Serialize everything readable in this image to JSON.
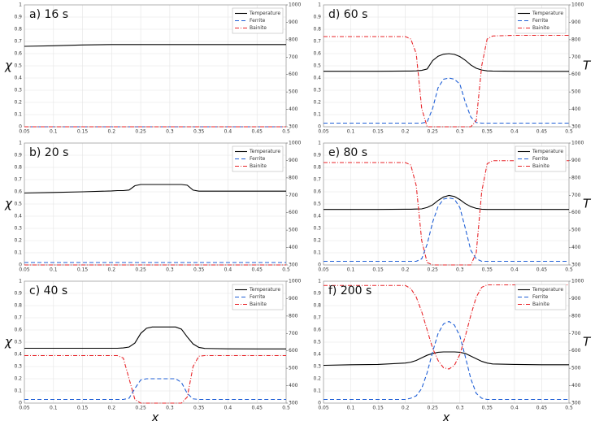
{
  "chart_data": [
    {
      "type": "line",
      "title": "a) 16 s",
      "ylabel": "χ",
      "x": [
        0.05,
        0.1,
        0.15,
        0.2,
        0.21,
        0.22,
        0.23,
        0.24,
        0.25,
        0.26,
        0.27,
        0.28,
        0.29,
        0.3,
        0.31,
        0.32,
        0.33,
        0.34,
        0.35,
        0.36,
        0.4,
        0.45,
        0.5
      ],
      "series": [
        {
          "name": "Temperature",
          "color": "#000000",
          "dash": "solid",
          "axis": "y2",
          "values": [
            762,
            765,
            770,
            772,
            772,
            772,
            772,
            772,
            772,
            772,
            772,
            772,
            772,
            772,
            772,
            772,
            772,
            772,
            772,
            772,
            772,
            772,
            772
          ]
        },
        {
          "name": "Ferrite",
          "color": "#1f5fd6",
          "dash": "dashed",
          "values": [
            0,
            0,
            0,
            0,
            0,
            0,
            0,
            0,
            0,
            0,
            0,
            0,
            0,
            0,
            0,
            0,
            0,
            0,
            0,
            0,
            0,
            0,
            0
          ]
        },
        {
          "name": "Bainite",
          "color": "#e8262a",
          "dash": "dashdot",
          "values": [
            0,
            0,
            0,
            0,
            0,
            0,
            0,
            0,
            0,
            0,
            0,
            0,
            0,
            0,
            0,
            0,
            0,
            0,
            0,
            0,
            0,
            0,
            0
          ]
        }
      ],
      "xlim": [
        0.05,
        0.5
      ],
      "xticks": [
        0.05,
        0.1,
        0.15,
        0.2,
        0.25,
        0.3,
        0.35,
        0.4,
        0.45,
        0.5
      ],
      "ylim": [
        0,
        1
      ],
      "yticks": [
        0,
        0.1,
        0.2,
        0.3,
        0.4,
        0.5,
        0.6,
        0.7,
        0.8,
        0.9,
        1
      ],
      "y2lim": [
        300,
        1000
      ],
      "y2ticks": [
        300,
        400,
        500,
        600,
        700,
        800,
        900,
        1000
      ],
      "grid": true,
      "legend": "upper-right"
    },
    {
      "type": "line",
      "title": "d) 60 s",
      "y2label": "T",
      "x": [
        0.05,
        0.1,
        0.15,
        0.2,
        0.21,
        0.22,
        0.23,
        0.24,
        0.25,
        0.26,
        0.27,
        0.28,
        0.29,
        0.3,
        0.31,
        0.32,
        0.33,
        0.34,
        0.35,
        0.36,
        0.4,
        0.45,
        0.5
      ],
      "series": [
        {
          "name": "Temperature",
          "color": "#000000",
          "dash": "solid",
          "axis": "y2",
          "values": [
            619,
            619,
            619,
            620,
            620,
            621,
            624,
            632,
            680,
            705,
            717,
            720,
            716,
            703,
            682,
            655,
            636,
            626,
            621,
            620,
            619,
            618,
            618
          ]
        },
        {
          "name": "Ferrite",
          "color": "#1f5fd6",
          "dash": "dashed",
          "values": [
            0.03,
            0.03,
            0.03,
            0.03,
            0.03,
            0.03,
            0.03,
            0.04,
            0.15,
            0.32,
            0.39,
            0.4,
            0.39,
            0.35,
            0.2,
            0.08,
            0.035,
            0.03,
            0.03,
            0.03,
            0.03,
            0.03,
            0.03
          ]
        },
        {
          "name": "Bainite",
          "color": "#e8262a",
          "dash": "dashdot",
          "values": [
            0.74,
            0.74,
            0.74,
            0.74,
            0.72,
            0.6,
            0.15,
            0,
            0,
            0,
            0,
            0,
            0,
            0,
            0,
            0,
            0.05,
            0.5,
            0.72,
            0.745,
            0.75,
            0.75,
            0.75
          ]
        }
      ],
      "xlim": [
        0.05,
        0.5
      ],
      "xticks": [
        0.05,
        0.1,
        0.15,
        0.2,
        0.25,
        0.3,
        0.35,
        0.4,
        0.45,
        0.5
      ],
      "ylim": [
        0,
        1
      ],
      "yticks": [
        0,
        0.1,
        0.2,
        0.3,
        0.4,
        0.5,
        0.6,
        0.7,
        0.8,
        0.9,
        1
      ],
      "y2lim": [
        300,
        1000
      ],
      "y2ticks": [
        300,
        400,
        500,
        600,
        700,
        800,
        900,
        1000
      ],
      "grid": true,
      "legend": "upper-right"
    },
    {
      "type": "line",
      "title": "b) 20 s",
      "ylabel": "χ",
      "x": [
        0.05,
        0.1,
        0.15,
        0.2,
        0.21,
        0.22,
        0.23,
        0.24,
        0.25,
        0.26,
        0.27,
        0.28,
        0.29,
        0.3,
        0.31,
        0.32,
        0.33,
        0.34,
        0.35,
        0.36,
        0.4,
        0.45,
        0.5
      ],
      "series": [
        {
          "name": "Temperature",
          "color": "#000000",
          "dash": "solid",
          "axis": "y2",
          "values": [
            713,
            716,
            720,
            725,
            727,
            727,
            730,
            755,
            762,
            762,
            762,
            762,
            762,
            762,
            762,
            762,
            758,
            730,
            724,
            724,
            724,
            724,
            724
          ]
        },
        {
          "name": "Ferrite",
          "color": "#1f5fd6",
          "dash": "dashed",
          "values": [
            0.02,
            0.02,
            0.02,
            0.02,
            0.02,
            0.02,
            0.02,
            0.02,
            0.02,
            0.02,
            0.02,
            0.02,
            0.02,
            0.02,
            0.02,
            0.02,
            0.02,
            0.02,
            0.02,
            0.02,
            0.02,
            0.02,
            0.02
          ]
        },
        {
          "name": "Bainite",
          "color": "#e8262a",
          "dash": "dashdot",
          "values": [
            0,
            0,
            0,
            0,
            0,
            0,
            0,
            0,
            0,
            0,
            0,
            0,
            0,
            0,
            0,
            0,
            0,
            0,
            0,
            0,
            0,
            0,
            0
          ]
        }
      ],
      "xlim": [
        0.05,
        0.5
      ],
      "xticks": [
        0.05,
        0.1,
        0.15,
        0.2,
        0.25,
        0.3,
        0.35,
        0.4,
        0.45,
        0.5
      ],
      "ylim": [
        0,
        1
      ],
      "yticks": [
        0,
        0.1,
        0.2,
        0.3,
        0.4,
        0.5,
        0.6,
        0.7,
        0.8,
        0.9,
        1
      ],
      "y2lim": [
        300,
        1000
      ],
      "y2ticks": [
        300,
        400,
        500,
        600,
        700,
        800,
        900,
        1000
      ],
      "grid": true,
      "legend": "upper-right"
    },
    {
      "type": "line",
      "title": "e) 80 s",
      "y2label": "T",
      "x": [
        0.05,
        0.1,
        0.15,
        0.2,
        0.21,
        0.22,
        0.23,
        0.24,
        0.25,
        0.26,
        0.27,
        0.28,
        0.29,
        0.3,
        0.31,
        0.32,
        0.33,
        0.34,
        0.35,
        0.36,
        0.4,
        0.45,
        0.5
      ],
      "series": [
        {
          "name": "Temperature",
          "color": "#000000",
          "dash": "solid",
          "axis": "y2",
          "values": [
            619,
            619,
            619,
            620,
            620,
            621,
            622,
            630,
            645,
            670,
            690,
            699,
            693,
            675,
            652,
            635,
            625,
            620,
            619,
            619,
            619,
            619,
            619
          ]
        },
        {
          "name": "Ferrite",
          "color": "#1f5fd6",
          "dash": "dashed",
          "values": [
            0.03,
            0.03,
            0.03,
            0.03,
            0.03,
            0.03,
            0.05,
            0.17,
            0.35,
            0.48,
            0.54,
            0.55,
            0.54,
            0.47,
            0.3,
            0.12,
            0.05,
            0.03,
            0.03,
            0.03,
            0.03,
            0.03,
            0.03
          ]
        },
        {
          "name": "Bainite",
          "color": "#e8262a",
          "dash": "dashdot",
          "values": [
            0.84,
            0.84,
            0.84,
            0.84,
            0.82,
            0.65,
            0.2,
            0.02,
            0,
            0,
            0,
            0,
            0,
            0,
            0,
            0,
            0.1,
            0.6,
            0.83,
            0.855,
            0.855,
            0.855,
            0.855
          ]
        }
      ],
      "xlim": [
        0.05,
        0.5
      ],
      "xticks": [
        0.05,
        0.1,
        0.15,
        0.2,
        0.25,
        0.3,
        0.35,
        0.4,
        0.45,
        0.5
      ],
      "ylim": [
        0,
        1
      ],
      "yticks": [
        0,
        0.1,
        0.2,
        0.3,
        0.4,
        0.5,
        0.6,
        0.7,
        0.8,
        0.9,
        1
      ],
      "y2lim": [
        300,
        1000
      ],
      "y2ticks": [
        300,
        400,
        500,
        600,
        700,
        800,
        900,
        1000
      ],
      "grid": true,
      "legend": "upper-right"
    },
    {
      "type": "line",
      "title": "c) 40 s",
      "ylabel": "χ",
      "xlabel": "x",
      "x": [
        0.05,
        0.1,
        0.15,
        0.2,
        0.21,
        0.22,
        0.23,
        0.24,
        0.25,
        0.26,
        0.27,
        0.28,
        0.29,
        0.3,
        0.31,
        0.32,
        0.33,
        0.34,
        0.35,
        0.36,
        0.4,
        0.45,
        0.5
      ],
      "series": [
        {
          "name": "Temperature",
          "color": "#000000",
          "dash": "solid",
          "axis": "y2",
          "values": [
            615,
            615,
            615,
            615,
            615,
            617,
            622,
            645,
            700,
            730,
            737,
            737,
            737,
            737,
            737,
            725,
            680,
            640,
            620,
            614,
            612,
            611,
            611
          ]
        },
        {
          "name": "Ferrite",
          "color": "#1f5fd6",
          "dash": "dashed",
          "values": [
            0.03,
            0.03,
            0.03,
            0.03,
            0.03,
            0.03,
            0.04,
            0.12,
            0.19,
            0.2,
            0.2,
            0.2,
            0.2,
            0.2,
            0.2,
            0.17,
            0.08,
            0.035,
            0.03,
            0.03,
            0.03,
            0.03,
            0.03
          ]
        },
        {
          "name": "Bainite",
          "color": "#e8262a",
          "dash": "dashdot",
          "values": [
            0.39,
            0.39,
            0.39,
            0.39,
            0.39,
            0.37,
            0.2,
            0.03,
            0,
            0,
            0,
            0,
            0,
            0,
            0,
            0,
            0.05,
            0.3,
            0.385,
            0.39,
            0.39,
            0.39,
            0.39
          ]
        }
      ],
      "xlim": [
        0.05,
        0.5
      ],
      "xticks": [
        0.05,
        0.1,
        0.15,
        0.2,
        0.25,
        0.3,
        0.35,
        0.4,
        0.45,
        0.5
      ],
      "ylim": [
        0,
        1
      ],
      "yticks": [
        0,
        0.1,
        0.2,
        0.3,
        0.4,
        0.5,
        0.6,
        0.7,
        0.8,
        0.9,
        1
      ],
      "y2lim": [
        300,
        1000
      ],
      "y2ticks": [
        300,
        400,
        500,
        600,
        700,
        800,
        900,
        1000
      ],
      "grid": true,
      "legend": "upper-right"
    },
    {
      "type": "line",
      "title": "f) 200 s",
      "y2label": "T",
      "xlabel": "x",
      "x": [
        0.05,
        0.1,
        0.15,
        0.2,
        0.21,
        0.22,
        0.23,
        0.24,
        0.25,
        0.26,
        0.27,
        0.28,
        0.29,
        0.3,
        0.31,
        0.32,
        0.33,
        0.34,
        0.35,
        0.36,
        0.4,
        0.45,
        0.5
      ],
      "series": [
        {
          "name": "Temperature",
          "color": "#000000",
          "dash": "solid",
          "axis": "y2",
          "values": [
            517,
            520,
            522,
            530,
            535,
            545,
            560,
            575,
            585,
            592,
            594,
            594,
            594,
            592,
            585,
            570,
            555,
            540,
            530,
            525,
            522,
            520,
            520
          ]
        },
        {
          "name": "Ferrite",
          "color": "#1f5fd6",
          "dash": "dashed",
          "values": [
            0.03,
            0.03,
            0.03,
            0.03,
            0.04,
            0.06,
            0.12,
            0.25,
            0.42,
            0.57,
            0.65,
            0.67,
            0.64,
            0.55,
            0.38,
            0.2,
            0.08,
            0.04,
            0.03,
            0.03,
            0.03,
            0.03,
            0.03
          ]
        },
        {
          "name": "Bainite",
          "color": "#e8262a",
          "dash": "dashdot",
          "values": [
            0.965,
            0.965,
            0.965,
            0.965,
            0.94,
            0.87,
            0.75,
            0.6,
            0.45,
            0.35,
            0.29,
            0.28,
            0.31,
            0.4,
            0.55,
            0.72,
            0.87,
            0.95,
            0.97,
            0.97,
            0.97,
            0.97,
            0.97
          ]
        }
      ],
      "xlim": [
        0.05,
        0.5
      ],
      "xticks": [
        0.05,
        0.1,
        0.15,
        0.2,
        0.25,
        0.3,
        0.35,
        0.4,
        0.45,
        0.5
      ],
      "ylim": [
        0,
        1
      ],
      "yticks": [
        0,
        0.1,
        0.2,
        0.3,
        0.4,
        0.5,
        0.6,
        0.7,
        0.8,
        0.9,
        1
      ],
      "y2lim": [
        300,
        1000
      ],
      "y2ticks": [
        300,
        400,
        500,
        600,
        700,
        800,
        900,
        1000
      ],
      "grid": true,
      "legend": "upper-right"
    }
  ]
}
